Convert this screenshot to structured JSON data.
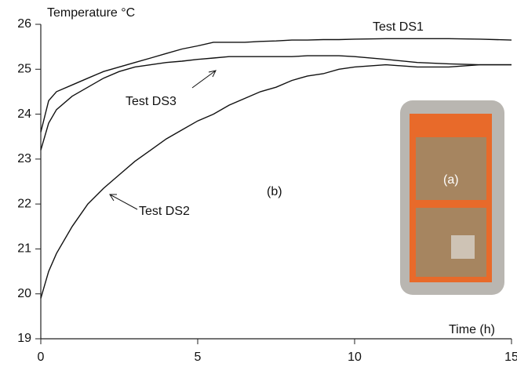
{
  "chart_data": {
    "type": "line",
    "y_label": "Temperature °C",
    "x_label": "Time (h)",
    "annotations": [
      "Test DS1",
      "Test DS3",
      "Test DS2",
      "(b)",
      "(a)"
    ],
    "x": [
      0,
      0.25,
      0.5,
      1,
      1.5,
      2,
      2.5,
      3,
      3.5,
      4,
      4.5,
      5,
      5.5,
      6,
      6.5,
      7,
      7.5,
      8,
      8.5,
      9,
      9.5,
      10,
      11,
      12,
      13,
      14,
      15
    ],
    "series": [
      {
        "name": "Test DS1",
        "color": "#111111",
        "values": [
          23.6,
          24.3,
          24.5,
          24.65,
          24.8,
          24.95,
          25.05,
          25.15,
          25.25,
          25.35,
          25.45,
          25.52,
          25.6,
          25.6,
          25.6,
          25.62,
          25.63,
          25.65,
          25.65,
          25.66,
          25.66,
          25.67,
          25.68,
          25.68,
          25.68,
          25.67,
          25.65
        ]
      },
      {
        "name": "Test DS3",
        "color": "#111111",
        "values": [
          23.2,
          23.8,
          24.1,
          24.4,
          24.6,
          24.8,
          24.95,
          25.05,
          25.1,
          25.15,
          25.18,
          25.22,
          25.25,
          25.28,
          25.28,
          25.28,
          25.28,
          25.28,
          25.3,
          25.3,
          25.3,
          25.28,
          25.22,
          25.15,
          25.12,
          25.1,
          25.1
        ]
      },
      {
        "name": "Test DS2",
        "color": "#111111",
        "values": [
          19.9,
          20.5,
          20.9,
          21.5,
          22.0,
          22.35,
          22.65,
          22.95,
          23.2,
          23.45,
          23.65,
          23.85,
          24.0,
          24.2,
          24.35,
          24.5,
          24.6,
          24.75,
          24.85,
          24.9,
          25.0,
          25.05,
          25.1,
          25.05,
          25.05,
          25.1,
          25.1
        ]
      }
    ],
    "xlim": [
      0,
      15
    ],
    "xticks": [
      0,
      5,
      10,
      15
    ],
    "ylim": [
      19,
      26
    ],
    "yticks": [
      19,
      20,
      21,
      22,
      23,
      24,
      25,
      26
    ],
    "grid": false
  }
}
